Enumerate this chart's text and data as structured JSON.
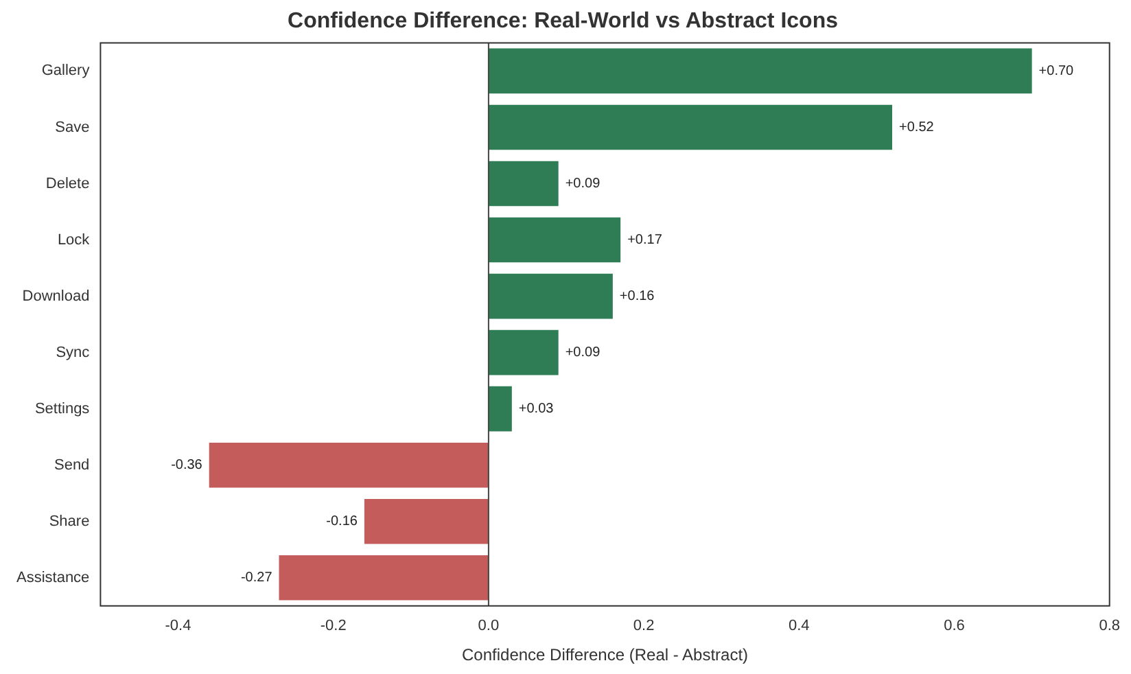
{
  "chart_data": {
    "type": "bar",
    "orientation": "horizontal",
    "title": "Confidence Difference: Real-World vs Abstract Icons",
    "xlabel": "Confidence Difference (Real - Abstract)",
    "categories": [
      "Gallery",
      "Save",
      "Delete",
      "Lock",
      "Download",
      "Sync",
      "Settings",
      "Send",
      "Share",
      "Assistance"
    ],
    "values": [
      0.7,
      0.52,
      0.09,
      0.17,
      0.16,
      0.09,
      0.03,
      -0.36,
      -0.16,
      -0.27
    ],
    "colors": [
      "#2f7d55",
      "#2f7d55",
      "#2f7d55",
      "#2f7d55",
      "#2f7d55",
      "#2f7d55",
      "#2f7d55",
      "#c45c5c",
      "#c45c5c",
      "#c45c5c"
    ],
    "value_labels": [
      "+0.70",
      "+0.52",
      "+0.09",
      "+0.17",
      "+0.16",
      "+0.09",
      "+0.03",
      "-0.36",
      "-0.16",
      "-0.27"
    ],
    "xlim": [
      -0.5,
      0.8
    ],
    "xticks": [
      -0.4,
      -0.2,
      {
        "value": 0,
        "label": "0.0"
      },
      0.2,
      0.4,
      0.6,
      0.8
    ],
    "ref_lines": [
      {
        "axis": "x",
        "value": 0,
        "color": "#444444"
      }
    ],
    "grid": false,
    "legend": false
  }
}
